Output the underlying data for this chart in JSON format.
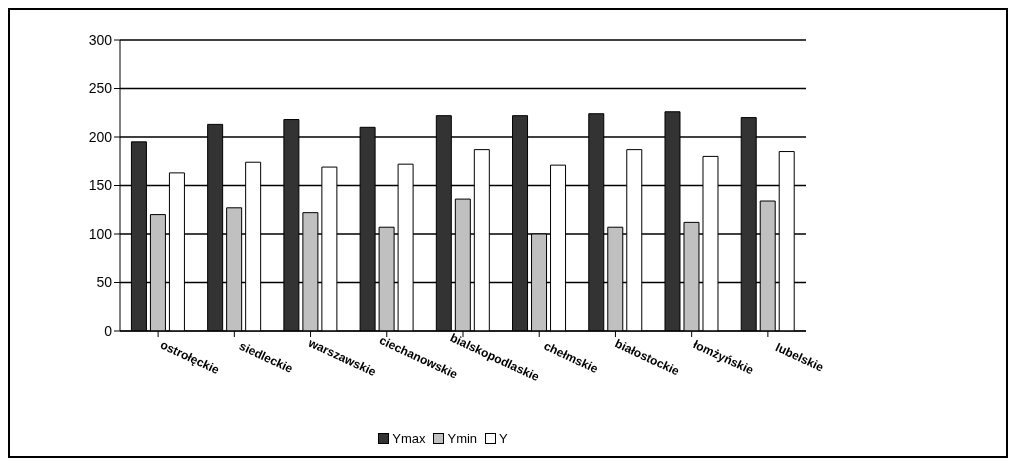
{
  "chart_data": {
    "type": "bar",
    "categories": [
      "ostrołęckie",
      "siedleckie",
      "warszawskie",
      "ciechanowskie",
      "bialskopodlaskie",
      "chełmskie",
      "białostockie",
      "łomżyńskie",
      "lubelskie"
    ],
    "series": [
      {
        "name": "Ymax",
        "color": "#333333",
        "values": [
          195,
          213,
          218,
          210,
          222,
          222,
          224,
          226,
          220
        ]
      },
      {
        "name": "Ymin",
        "color": "#c0c0c0",
        "values": [
          120,
          127,
          122,
          107,
          136,
          100,
          107,
          112,
          134
        ]
      },
      {
        "name": "Y",
        "color": "#ffffff",
        "values": [
          163,
          174,
          169,
          172,
          187,
          171,
          187,
          180,
          185
        ]
      }
    ],
    "ylim": [
      0,
      300
    ],
    "yticks": [
      0,
      50,
      100,
      150,
      200,
      250,
      300
    ],
    "grid": "y",
    "legend": "bottom"
  }
}
